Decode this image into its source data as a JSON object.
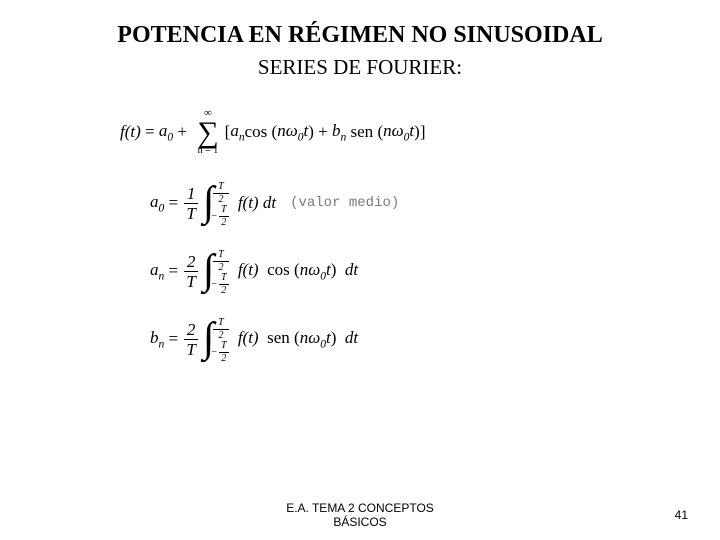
{
  "title": {
    "text": "POTENCIA EN RÉGIMEN NO SINUSOIDAL",
    "fontsize": 24
  },
  "subtitle": {
    "text": "SERIES DE FOURIER:",
    "fontsize": 21
  },
  "equations": {
    "fontsize": 17,
    "series": {
      "lhs": "f(t)",
      "a0": "a",
      "a0_sub": "0",
      "sum_top": "∞",
      "sum_bottom": "n = 1",
      "an": "a",
      "an_sub": "n",
      "cos_arg": "nω",
      "omega_sub": "0",
      "t_var": "t",
      "bn": "b",
      "bn_sub": "n",
      "sen": "sen"
    },
    "a0": {
      "lhs": "a",
      "lhs_sub": "0",
      "coef_num": "1",
      "coef_den": "T",
      "int_upper_num": "T",
      "int_upper_den": "2",
      "int_lower_num": "T",
      "int_lower_den": "2",
      "integrand": "f(t) dt",
      "note": "(valor medio)"
    },
    "an": {
      "lhs": "a",
      "lhs_sub": "n",
      "coef_num": "2",
      "coef_den": "T",
      "int_upper_num": "T",
      "int_upper_den": "2",
      "int_lower_num": "T",
      "int_lower_den": "2",
      "integrand_f": "f(t)",
      "trig": "cos",
      "arg": "nω",
      "omega_sub": "0",
      "t_var": "t",
      "dt": "dt"
    },
    "bn": {
      "lhs": "b",
      "lhs_sub": "n",
      "coef_num": "2",
      "coef_den": "T",
      "int_upper_num": "T",
      "int_upper_den": "2",
      "int_lower_num": "T",
      "int_lower_den": "2",
      "integrand_f": "f(t)",
      "trig": "sen",
      "arg": "nω",
      "omega_sub": "0",
      "t_var": "t",
      "dt": "dt"
    }
  },
  "footer": {
    "line1": "E.A. TEMA 2 CONCEPTOS",
    "line2": "BÁSICOS",
    "fontsize": 12,
    "page": "41"
  },
  "colors": {
    "text": "#000000",
    "note": "#7a7a7a",
    "bg": "#ffffff"
  }
}
